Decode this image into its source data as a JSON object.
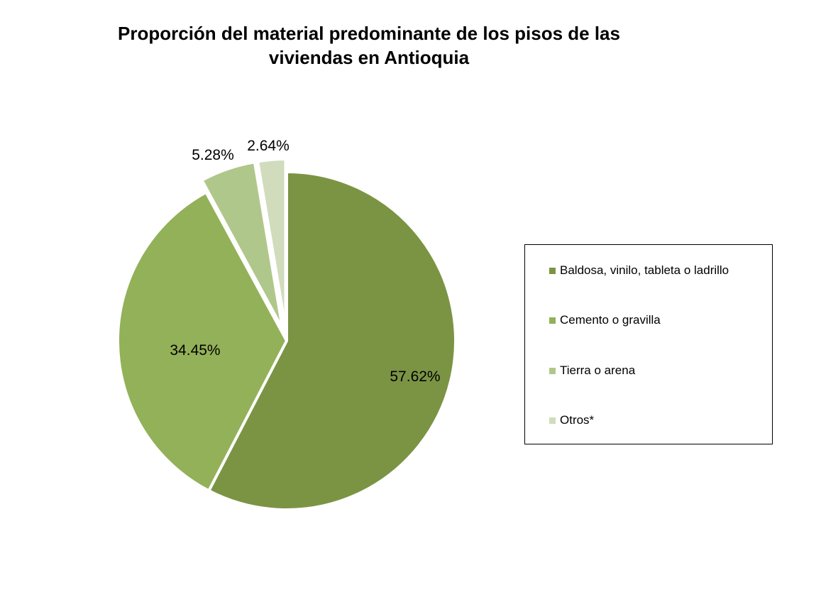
{
  "chart_data": {
    "type": "pie",
    "title_lines": [
      "Proporción del material predominante de los pisos de las",
      "viviendas en Antioquia"
    ],
    "slices": [
      {
        "name": "Baldosa, vinilo, tableta o ladrillo",
        "value": 57.62,
        "label": "57.62%",
        "color": "#7b9444",
        "exploded": false
      },
      {
        "name": "Cemento o gravilla",
        "value": 34.45,
        "label": "34.45%",
        "color": "#93b158",
        "exploded": false
      },
      {
        "name": "Tierra o arena",
        "value": 5.28,
        "label": "5.28%",
        "color": "#b0c78b",
        "exploded": true
      },
      {
        "name": "Otros*",
        "value": 2.64,
        "label": "2.64%",
        "color": "#d0dcbc",
        "exploded": true
      }
    ],
    "start_angle": "12 o'clock",
    "direction": "clockwise",
    "legend_position": "right"
  }
}
